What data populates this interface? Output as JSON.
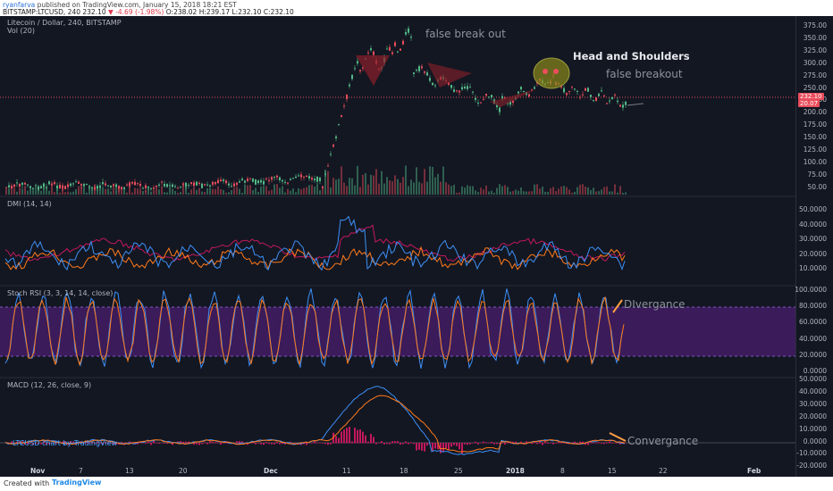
{
  "header": {
    "user": "ryanfarva",
    "published": "published on TradingView.com, January 15, 2018 18:21 EST",
    "symbol": "BITSTAMP:LTCUSD, 240",
    "last": "232.10",
    "change_arrow": "▼",
    "change": "-4.69 (-1.98%)",
    "ohlc": "O:238.02 H:239.17 L:232.10 C:232.10"
  },
  "main": {
    "title": "Litecoin / Dollar, 240, BITSTAMP",
    "vol": "Vol (20)",
    "annotations": {
      "false_break_out": "false break out",
      "head_and_shoulders": "Head and Shoulders",
      "false_breakout": "false breakout"
    },
    "price_tags": [
      "232.10",
      "20.07"
    ],
    "axis_ticks": [
      "375.00",
      "350.00",
      "325.00",
      "300.00",
      "275.00",
      "250.00",
      "225.00",
      "200.00",
      "175.00",
      "150.00",
      "125.00",
      "100.00",
      "75.00",
      "50.00"
    ]
  },
  "dmi": {
    "label": "DMI (14, 14)",
    "axis_ticks": [
      "50.0000",
      "40.0000",
      "30.0000",
      "20.0000",
      "10.0000"
    ]
  },
  "stoch": {
    "label": "Stoch RSI (3, 3, 14, 14, close)",
    "annotation": "DIvergance",
    "axis_ticks": [
      "100.0000",
      "80.0000",
      "60.0000",
      "40.0000",
      "20.0000",
      "0.0000"
    ]
  },
  "macd": {
    "label": "MACD (12, 26, close, 9)",
    "annotation": "Convergance",
    "axis_ticks": [
      "50.0000",
      "40.0000",
      "30.0000",
      "20.0000",
      "10.0000",
      "0.0000",
      "-10.0000",
      "-20.0000"
    ]
  },
  "watermark": "LTCUSD chart by TradingView",
  "x_axis": [
    "Nov",
    "7",
    "13",
    "20",
    "Dec",
    "11",
    "18",
    "25",
    "2018",
    "8",
    "15",
    "22",
    "Feb"
  ],
  "footer": {
    "created": "Created with",
    "brand": "TradingView"
  },
  "colors": {
    "background": "#131722",
    "up": "#53b987",
    "down": "#eb4d5c",
    "dmi_plus": "#3d8ff5",
    "dmi_minus": "#ff7a1a",
    "adx": "#c2185b",
    "stoch_band": "#4a1e6e",
    "macd_hist": "#c2185b"
  }
}
